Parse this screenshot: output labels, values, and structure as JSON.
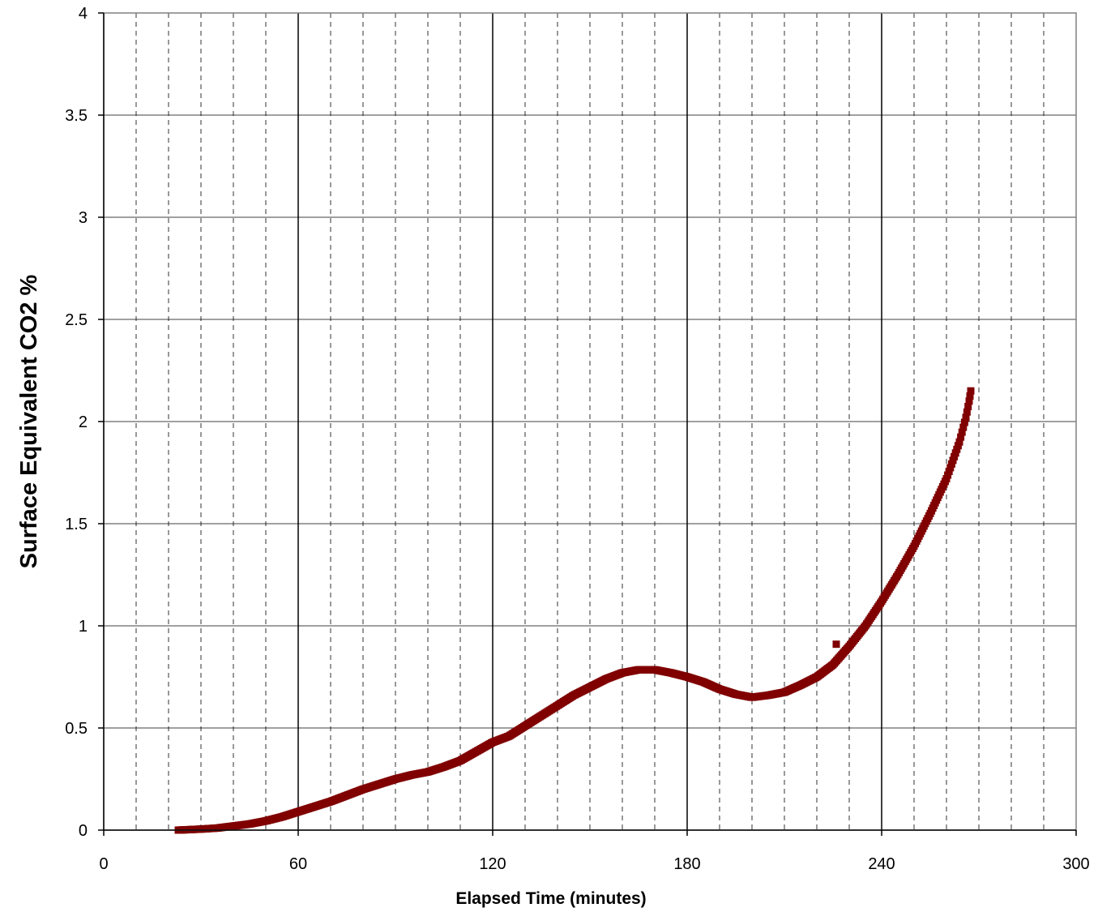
{
  "chart_data": {
    "type": "scatter",
    "title": "",
    "xlabel": "Elapsed Time (minutes)",
    "ylabel": "Surface Equivalent CO2 %",
    "xlim": [
      0,
      300
    ],
    "ylim": [
      0,
      4
    ],
    "x_ticks": [
      0,
      60,
      120,
      180,
      240,
      300
    ],
    "x_tick_labels": [
      "0",
      "60",
      "120",
      "180",
      "240",
      "300"
    ],
    "y_ticks": [
      0,
      0.5,
      1,
      1.5,
      2,
      2.5,
      3,
      3.5,
      4
    ],
    "y_tick_labels": [
      "0",
      "0.5",
      "1",
      "1.5",
      "2",
      "2.5",
      "3",
      "3.5",
      "4"
    ],
    "grid": {
      "horizontal": "solid",
      "vertical_major_every": 60,
      "vertical_minor_every": 10,
      "vertical_minor_style": "dashed"
    },
    "legend": "none",
    "marker": {
      "shape": "square",
      "color": "#800000"
    },
    "curve_points": [
      [
        23,
        0.0
      ],
      [
        30,
        0.005
      ],
      [
        35,
        0.01
      ],
      [
        40,
        0.02
      ],
      [
        45,
        0.03
      ],
      [
        50,
        0.045
      ],
      [
        55,
        0.065
      ],
      [
        60,
        0.09
      ],
      [
        65,
        0.115
      ],
      [
        70,
        0.14
      ],
      [
        75,
        0.17
      ],
      [
        80,
        0.2
      ],
      [
        85,
        0.225
      ],
      [
        90,
        0.25
      ],
      [
        95,
        0.27
      ],
      [
        100,
        0.285
      ],
      [
        105,
        0.31
      ],
      [
        110,
        0.34
      ],
      [
        115,
        0.385
      ],
      [
        120,
        0.43
      ],
      [
        125,
        0.46
      ],
      [
        130,
        0.51
      ],
      [
        135,
        0.56
      ],
      [
        140,
        0.61
      ],
      [
        145,
        0.66
      ],
      [
        150,
        0.7
      ],
      [
        155,
        0.74
      ],
      [
        160,
        0.77
      ],
      [
        165,
        0.785
      ],
      [
        170,
        0.785
      ],
      [
        175,
        0.77
      ],
      [
        180,
        0.75
      ],
      [
        185,
        0.725
      ],
      [
        190,
        0.69
      ],
      [
        195,
        0.665
      ],
      [
        200,
        0.65
      ],
      [
        205,
        0.66
      ],
      [
        210,
        0.675
      ],
      [
        215,
        0.71
      ],
      [
        220,
        0.75
      ],
      [
        225,
        0.81
      ],
      [
        230,
        0.9
      ],
      [
        235,
        1.0
      ],
      [
        240,
        1.12
      ],
      [
        245,
        1.25
      ],
      [
        250,
        1.39
      ],
      [
        255,
        1.55
      ],
      [
        260,
        1.72
      ],
      [
        264,
        1.9
      ],
      [
        266,
        2.02
      ],
      [
        267,
        2.1
      ],
      [
        267.5,
        2.15
      ]
    ],
    "outlier_points": [
      [
        226,
        0.91
      ]
    ]
  }
}
